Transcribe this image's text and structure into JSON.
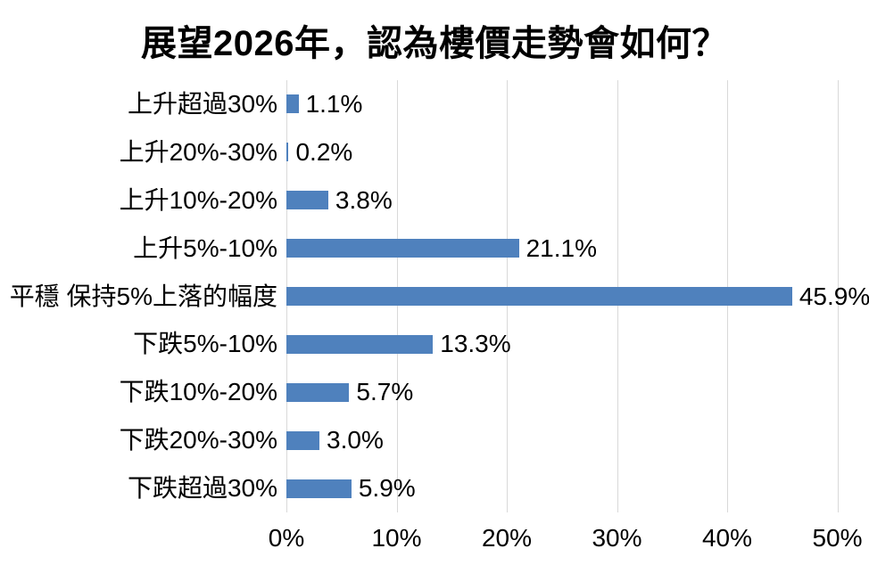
{
  "title": "展望2026年，認為樓價走勢會如何？",
  "chart_data": {
    "type": "bar",
    "orientation": "horizontal",
    "title": "展望2026年，認為樓價走勢會如何？",
    "categories": [
      "上升超過30%",
      "上升20%-30%",
      "上升10%-20%",
      "上升5%-10%",
      "平穩 保持5%上落的幅度",
      "下跌5%-10%",
      "下跌10%-20%",
      "下跌20%-30%",
      "下跌超過30%"
    ],
    "values": [
      1.1,
      0.2,
      3.8,
      21.1,
      45.9,
      13.3,
      5.7,
      3.0,
      5.9
    ],
    "value_labels": [
      "1.1%",
      "0.2%",
      "3.8%",
      "21.1%",
      "45.9%",
      "13.3%",
      "5.7%",
      "3.0%",
      "5.9%"
    ],
    "xlabel": "",
    "ylabel": "",
    "xlim": [
      0,
      50
    ],
    "x_ticks": [
      "0%",
      "10%",
      "20%",
      "30%",
      "40%",
      "50%"
    ],
    "x_tick_values": [
      0,
      10,
      20,
      30,
      40,
      50
    ],
    "grid": "vertical-only",
    "legend": "none",
    "bar_color": "#4F81BD",
    "gridline_color": "#D9D9D9",
    "text_color": "#000000",
    "background_color": "#FFFFFF"
  }
}
